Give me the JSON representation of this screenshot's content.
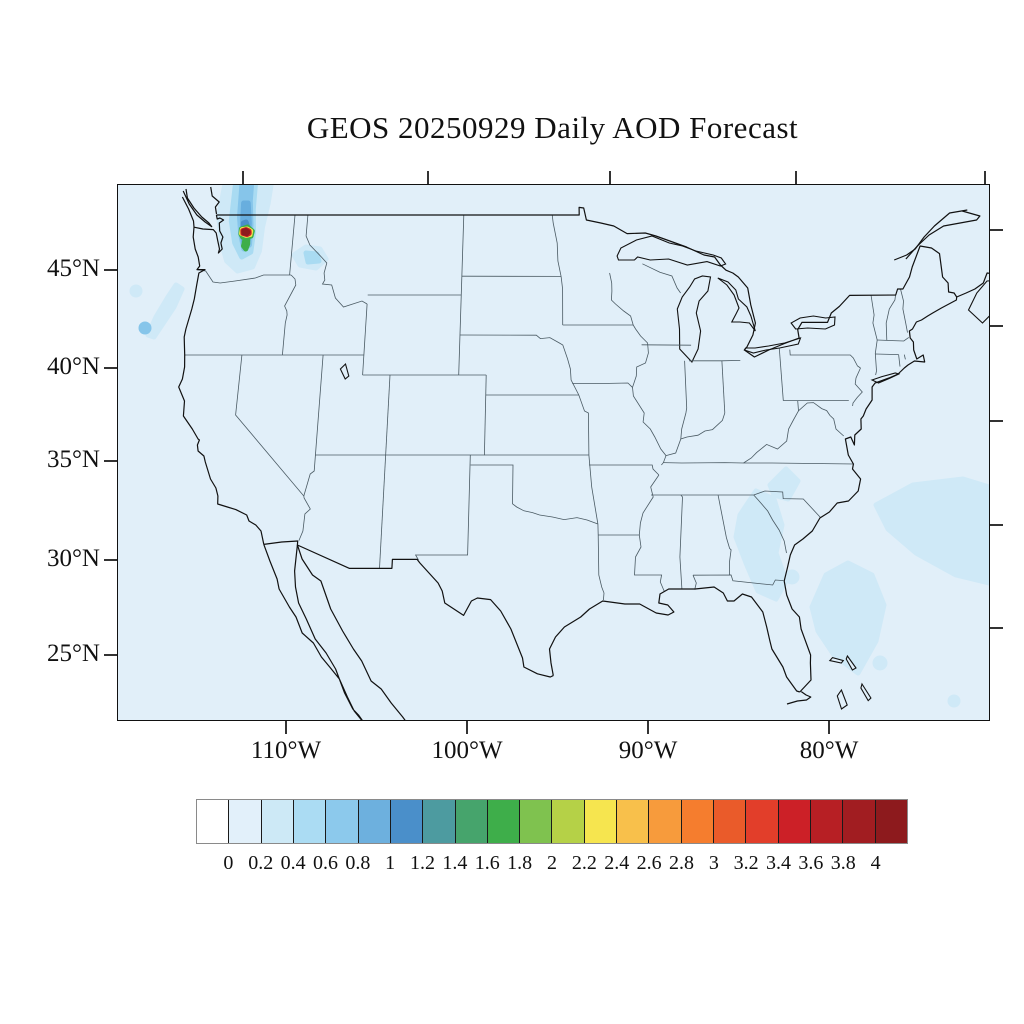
{
  "title": "GEOS 20250929 Daily AOD Forecast",
  "axes": {
    "lat_ticks": [
      "45°N",
      "40°N",
      "35°N",
      "30°N",
      "25°N"
    ],
    "lon_ticks": [
      "110°W",
      "100°W",
      "90°W",
      "80°W"
    ]
  },
  "colorbar": {
    "tick_labels": [
      "0",
      "0.2",
      "0.4",
      "0.6",
      "0.8",
      "1",
      "1.2",
      "1.4",
      "1.6",
      "1.8",
      "2",
      "2.2",
      "2.4",
      "2.6",
      "2.8",
      "3",
      "3.2",
      "3.4",
      "3.6",
      "3.8",
      "4"
    ],
    "colors": [
      "#ffffff",
      "#e2f0fa",
      "#cde9f6",
      "#abdcf3",
      "#8cc9ec",
      "#6db0de",
      "#4a8fca",
      "#4d9ba0",
      "#46a46c",
      "#3eae4a",
      "#7fc24f",
      "#b5d147",
      "#f6e54f",
      "#f8c04b",
      "#f79b3c",
      "#f57d2e",
      "#ea5b2a",
      "#e23e2a",
      "#cc2027",
      "#b71f24",
      "#a11d21",
      "#8d1a1d"
    ]
  },
  "map": {
    "background_color": "#e1eff9",
    "coast_color": "#111111",
    "state_line_color": "#4a5a63",
    "region": "Contiguous United States"
  },
  "chart_data": {
    "type": "heatmap",
    "title": "GEOS 20250929 Daily AOD Forecast",
    "variable": "Aerosol Optical Depth (AOD)",
    "region": "Contiguous United States and adjacent ocean",
    "colorbar_ticks": [
      0,
      0.2,
      0.4,
      0.6,
      0.8,
      1,
      1.2,
      1.4,
      1.6,
      1.8,
      2,
      2.2,
      2.4,
      2.6,
      2.8,
      3,
      3.2,
      3.4,
      3.6,
      3.8,
      4
    ],
    "lat_ticks_deg_n": [
      45,
      40,
      35,
      30,
      25
    ],
    "lon_ticks_deg_w": [
      110,
      100,
      90,
      80
    ],
    "background_aod": "0 - 0.2 over most of the domain",
    "hotspots": [
      {
        "location": "central Washington state",
        "peak_aod": "3.5 - 4+",
        "note": "small red/yellow/green fire core with blue plume extending north into British Columbia"
      },
      {
        "location": "north-central Oregon to coast",
        "peak_aod": "0.6 - 0.8",
        "note": "narrow light-blue streak with small darker spot at coast"
      },
      {
        "location": "western Montana",
        "peak_aod": "0.4 - 0.6",
        "note": "small light-blue patch"
      },
      {
        "location": "Georgia / South Carolina coast",
        "peak_aod": "0.2 - 0.4",
        "note": "light-blue haze band along coast"
      },
      {
        "location": "western Atlantic / Bahamas",
        "peak_aod": "0.2 - 0.4",
        "note": "broad light-blue haze areas east of Florida"
      }
    ]
  }
}
